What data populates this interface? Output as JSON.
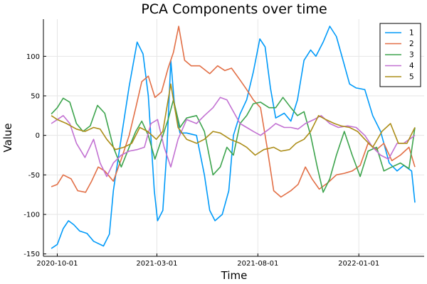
{
  "chart_data": {
    "type": "line",
    "title": "PCA Components over time",
    "xlabel": "Time",
    "ylabel": "Value",
    "xlim": [
      "2020-09-10",
      "2022-04-10"
    ],
    "ylim": [
      -153,
      147
    ],
    "x_ticks": [
      "2020-10-01",
      "2021-03-01",
      "2021-08-01",
      "2022-01-01"
    ],
    "y_ticks": [
      -150,
      -100,
      -50,
      0,
      50,
      100
    ],
    "grid": true,
    "legend_position": "top-right",
    "series": [
      {
        "name": "1",
        "color": "#009af9",
        "points": [
          [
            "2020-09-22",
            -143
          ],
          [
            "2020-10-01",
            -138
          ],
          [
            "2020-10-10",
            -118
          ],
          [
            "2020-10-18",
            -108
          ],
          [
            "2020-10-26",
            -113
          ],
          [
            "2020-11-04",
            -121
          ],
          [
            "2020-11-15",
            -124
          ],
          [
            "2020-11-25",
            -134
          ],
          [
            "2020-12-10",
            -140
          ],
          [
            "2020-12-19",
            -125
          ],
          [
            "2020-12-25",
            -70
          ],
          [
            "2021-01-06",
            -3
          ],
          [
            "2021-01-18",
            62
          ],
          [
            "2021-01-30",
            118
          ],
          [
            "2021-02-08",
            103
          ],
          [
            "2021-02-16",
            50
          ],
          [
            "2021-02-25",
            -70
          ],
          [
            "2021-03-02",
            -108
          ],
          [
            "2021-03-10",
            -95
          ],
          [
            "2021-03-16",
            -20
          ],
          [
            "2021-03-22",
            95
          ],
          [
            "2021-03-28",
            35
          ],
          [
            "2021-04-05",
            3
          ],
          [
            "2021-04-15",
            3
          ],
          [
            "2021-04-30",
            0
          ],
          [
            "2021-05-12",
            -50
          ],
          [
            "2021-05-20",
            -95
          ],
          [
            "2021-05-28",
            -108
          ],
          [
            "2021-06-08",
            -100
          ],
          [
            "2021-06-18",
            -70
          ],
          [
            "2021-06-25",
            0
          ],
          [
            "2021-07-05",
            27
          ],
          [
            "2021-07-15",
            45
          ],
          [
            "2021-07-25",
            80
          ],
          [
            "2021-08-04",
            122
          ],
          [
            "2021-08-12",
            112
          ],
          [
            "2021-08-20",
            60
          ],
          [
            "2021-08-28",
            22
          ],
          [
            "2021-09-10",
            28
          ],
          [
            "2021-09-20",
            18
          ],
          [
            "2021-09-30",
            45
          ],
          [
            "2021-10-10",
            95
          ],
          [
            "2021-10-20",
            108
          ],
          [
            "2021-10-28",
            100
          ],
          [
            "2021-11-08",
            118
          ],
          [
            "2021-11-18",
            138
          ],
          [
            "2021-11-28",
            125
          ],
          [
            "2021-12-08",
            95
          ],
          [
            "2021-12-18",
            65
          ],
          [
            "2021-12-28",
            60
          ],
          [
            "2022-01-10",
            58
          ],
          [
            "2022-01-22",
            25
          ],
          [
            "2022-02-03",
            5
          ],
          [
            "2022-02-16",
            -35
          ],
          [
            "2022-02-28",
            -45
          ],
          [
            "2022-03-10",
            -38
          ],
          [
            "2022-03-22",
            -45
          ],
          [
            "2022-03-27",
            -85
          ]
        ]
      },
      {
        "name": "2",
        "color": "#e26f46",
        "points": [
          [
            "2020-09-22",
            -65
          ],
          [
            "2020-10-01",
            -62
          ],
          [
            "2020-10-10",
            -50
          ],
          [
            "2020-10-22",
            -55
          ],
          [
            "2020-11-01",
            -70
          ],
          [
            "2020-11-13",
            -72
          ],
          [
            "2020-11-22",
            -58
          ],
          [
            "2020-12-02",
            -40
          ],
          [
            "2020-12-12",
            -45
          ],
          [
            "2020-12-25",
            -58
          ],
          [
            "2021-01-06",
            -30
          ],
          [
            "2021-01-18",
            0
          ],
          [
            "2021-01-28",
            35
          ],
          [
            "2021-02-06",
            68
          ],
          [
            "2021-02-16",
            75
          ],
          [
            "2021-02-26",
            48
          ],
          [
            "2021-03-08",
            55
          ],
          [
            "2021-03-18",
            85
          ],
          [
            "2021-03-26",
            105
          ],
          [
            "2021-04-03",
            138
          ],
          [
            "2021-04-12",
            95
          ],
          [
            "2021-04-22",
            88
          ],
          [
            "2021-05-05",
            88
          ],
          [
            "2021-05-20",
            78
          ],
          [
            "2021-06-01",
            88
          ],
          [
            "2021-06-12",
            82
          ],
          [
            "2021-06-22",
            85
          ],
          [
            "2021-07-05",
            70
          ],
          [
            "2021-07-15",
            58
          ],
          [
            "2021-07-25",
            45
          ],
          [
            "2021-08-05",
            35
          ],
          [
            "2021-08-15",
            -15
          ],
          [
            "2021-08-25",
            -70
          ],
          [
            "2021-09-05",
            -78
          ],
          [
            "2021-09-20",
            -70
          ],
          [
            "2021-10-01",
            -62
          ],
          [
            "2021-10-12",
            -40
          ],
          [
            "2021-10-22",
            -55
          ],
          [
            "2021-11-02",
            -68
          ],
          [
            "2021-11-15",
            -60
          ],
          [
            "2021-11-28",
            -50
          ],
          [
            "2021-12-10",
            -48
          ],
          [
            "2021-12-22",
            -45
          ],
          [
            "2022-01-03",
            -38
          ],
          [
            "2022-01-15",
            -10
          ],
          [
            "2022-01-28",
            -18
          ],
          [
            "2022-02-08",
            -10
          ],
          [
            "2022-02-20",
            -32
          ],
          [
            "2022-03-05",
            -25
          ],
          [
            "2022-03-18",
            -15
          ],
          [
            "2022-03-27",
            -40
          ]
        ]
      },
      {
        "name": "3",
        "color": "#3da44d",
        "points": [
          [
            "2020-09-22",
            27
          ],
          [
            "2020-10-01",
            35
          ],
          [
            "2020-10-10",
            47
          ],
          [
            "2020-10-20",
            42
          ],
          [
            "2020-10-30",
            15
          ],
          [
            "2020-11-09",
            5
          ],
          [
            "2020-11-20",
            12
          ],
          [
            "2020-12-01",
            38
          ],
          [
            "2020-12-12",
            28
          ],
          [
            "2020-12-25",
            -15
          ],
          [
            "2021-01-06",
            -40
          ],
          [
            "2021-01-18",
            -15
          ],
          [
            "2021-01-28",
            5
          ],
          [
            "2021-02-06",
            18
          ],
          [
            "2021-02-16",
            0
          ],
          [
            "2021-02-26",
            -30
          ],
          [
            "2021-03-08",
            -5
          ],
          [
            "2021-03-18",
            20
          ],
          [
            "2021-03-26",
            45
          ],
          [
            "2021-04-05",
            10
          ],
          [
            "2021-04-15",
            22
          ],
          [
            "2021-04-30",
            25
          ],
          [
            "2021-05-12",
            5
          ],
          [
            "2021-05-25",
            -50
          ],
          [
            "2021-06-05",
            -40
          ],
          [
            "2021-06-15",
            -15
          ],
          [
            "2021-06-25",
            -25
          ],
          [
            "2021-07-05",
            15
          ],
          [
            "2021-07-15",
            25
          ],
          [
            "2021-07-25",
            40
          ],
          [
            "2021-08-05",
            42
          ],
          [
            "2021-08-18",
            35
          ],
          [
            "2021-08-28",
            35
          ],
          [
            "2021-09-08",
            48
          ],
          [
            "2021-09-20",
            35
          ],
          [
            "2021-09-30",
            25
          ],
          [
            "2021-10-10",
            30
          ],
          [
            "2021-10-20",
            0
          ],
          [
            "2021-10-30",
            -40
          ],
          [
            "2021-11-08",
            -72
          ],
          [
            "2021-11-18",
            -55
          ],
          [
            "2021-11-28",
            -25
          ],
          [
            "2021-12-10",
            5
          ],
          [
            "2021-12-22",
            -25
          ],
          [
            "2022-01-03",
            -52
          ],
          [
            "2022-01-15",
            -20
          ],
          [
            "2022-01-28",
            -15
          ],
          [
            "2022-02-08",
            -45
          ],
          [
            "2022-02-20",
            -40
          ],
          [
            "2022-03-05",
            -35
          ],
          [
            "2022-03-18",
            -42
          ],
          [
            "2022-03-27",
            10
          ]
        ]
      },
      {
        "name": "4",
        "color": "#c271d2",
        "points": [
          [
            "2020-09-22",
            15
          ],
          [
            "2020-10-01",
            20
          ],
          [
            "2020-10-10",
            25
          ],
          [
            "2020-10-20",
            15
          ],
          [
            "2020-10-30",
            -10
          ],
          [
            "2020-11-12",
            -28
          ],
          [
            "2020-11-25",
            -5
          ],
          [
            "2020-12-05",
            -35
          ],
          [
            "2020-12-15",
            -52
          ],
          [
            "2020-12-25",
            -35
          ],
          [
            "2021-01-06",
            -25
          ],
          [
            "2021-01-18",
            -20
          ],
          [
            "2021-01-30",
            -18
          ],
          [
            "2021-02-10",
            -15
          ],
          [
            "2021-02-20",
            15
          ],
          [
            "2021-03-02",
            20
          ],
          [
            "2021-03-12",
            -15
          ],
          [
            "2021-03-22",
            -40
          ],
          [
            "2021-04-02",
            -5
          ],
          [
            "2021-04-15",
            20
          ],
          [
            "2021-04-30",
            15
          ],
          [
            "2021-05-12",
            25
          ],
          [
            "2021-05-25",
            35
          ],
          [
            "2021-06-05",
            48
          ],
          [
            "2021-06-15",
            45
          ],
          [
            "2021-06-25",
            30
          ],
          [
            "2021-07-05",
            15
          ],
          [
            "2021-07-15",
            10
          ],
          [
            "2021-07-25",
            5
          ],
          [
            "2021-08-05",
            0
          ],
          [
            "2021-08-18",
            8
          ],
          [
            "2021-08-28",
            15
          ],
          [
            "2021-09-10",
            10
          ],
          [
            "2021-09-20",
            10
          ],
          [
            "2021-10-01",
            8
          ],
          [
            "2021-10-12",
            15
          ],
          [
            "2021-10-25",
            20
          ],
          [
            "2021-11-05",
            25
          ],
          [
            "2021-11-18",
            15
          ],
          [
            "2021-12-01",
            10
          ],
          [
            "2021-12-15",
            12
          ],
          [
            "2021-12-28",
            10
          ],
          [
            "2022-01-10",
            0
          ],
          [
            "2022-01-22",
            -15
          ],
          [
            "2022-02-03",
            -25
          ],
          [
            "2022-02-15",
            -30
          ],
          [
            "2022-02-28",
            -10
          ],
          [
            "2022-03-10",
            -10
          ],
          [
            "2022-03-27",
            0
          ]
        ]
      },
      {
        "name": "5",
        "color": "#ac8d18",
        "points": [
          [
            "2020-09-22",
            25
          ],
          [
            "2020-10-01",
            20
          ],
          [
            "2020-10-15",
            15
          ],
          [
            "2020-10-30",
            8
          ],
          [
            "2020-11-12",
            5
          ],
          [
            "2020-11-25",
            10
          ],
          [
            "2020-12-05",
            8
          ],
          [
            "2020-12-15",
            -5
          ],
          [
            "2020-12-28",
            -18
          ],
          [
            "2021-01-10",
            -15
          ],
          [
            "2021-01-22",
            -10
          ],
          [
            "2021-02-03",
            10
          ],
          [
            "2021-02-15",
            5
          ],
          [
            "2021-02-28",
            -5
          ],
          [
            "2021-03-10",
            5
          ],
          [
            "2021-03-22",
            65
          ],
          [
            "2021-04-02",
            10
          ],
          [
            "2021-04-15",
            -5
          ],
          [
            "2021-04-30",
            -10
          ],
          [
            "2021-05-12",
            -5
          ],
          [
            "2021-05-25",
            5
          ],
          [
            "2021-06-05",
            3
          ],
          [
            "2021-06-20",
            -5
          ],
          [
            "2021-07-05",
            -10
          ],
          [
            "2021-07-15",
            -15
          ],
          [
            "2021-07-28",
            -25
          ],
          [
            "2021-08-10",
            -18
          ],
          [
            "2021-08-25",
            -15
          ],
          [
            "2021-09-05",
            -20
          ],
          [
            "2021-09-18",
            -18
          ],
          [
            "2021-09-28",
            -10
          ],
          [
            "2021-10-10",
            -5
          ],
          [
            "2021-10-20",
            5
          ],
          [
            "2021-11-01",
            25
          ],
          [
            "2021-11-12",
            20
          ],
          [
            "2021-11-25",
            15
          ],
          [
            "2021-12-05",
            12
          ],
          [
            "2021-12-18",
            10
          ],
          [
            "2021-12-30",
            5
          ],
          [
            "2022-01-10",
            -5
          ],
          [
            "2022-01-22",
            -15
          ],
          [
            "2022-02-05",
            5
          ],
          [
            "2022-02-18",
            15
          ],
          [
            "2022-03-02",
            -10
          ],
          [
            "2022-03-15",
            -10
          ],
          [
            "2022-03-27",
            10
          ]
        ]
      }
    ]
  }
}
